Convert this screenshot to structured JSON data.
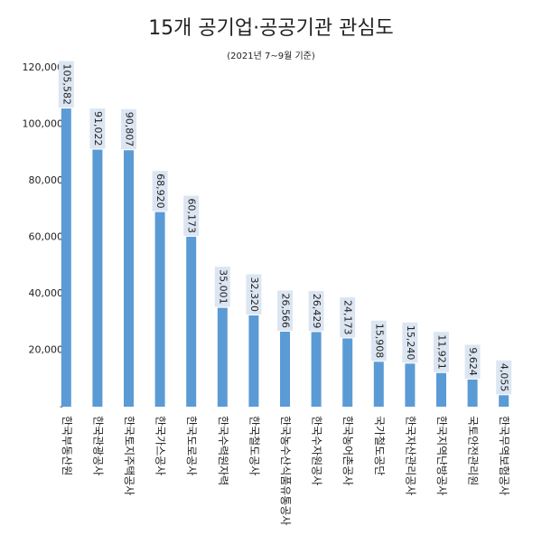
{
  "chart_data": {
    "type": "bar",
    "title": "15개 공기업·공공기관 관심도",
    "subtitle": "(2021년 7~9월 기준)",
    "categories": [
      "한국부동산원",
      "한국관광공사",
      "한국토지주택공사",
      "한국가스공사",
      "한국도로공사",
      "한국수력원자력",
      "한국철도공사",
      "한국농수산식품유통공사",
      "한국수자원공사",
      "한국농어촌공사",
      "국가철도공단",
      "한국자산관리공사",
      "한국지역난방공사",
      "국토안전관리원",
      "한국무역보험공사"
    ],
    "values": [
      105582,
      91022,
      90807,
      68920,
      60173,
      35001,
      32320,
      26566,
      26429,
      24173,
      15908,
      15240,
      11921,
      9624,
      4055
    ],
    "value_labels": [
      "105,582",
      "91,022",
      "90,807",
      "68,920",
      "60,173",
      "35,001",
      "32,320",
      "26,566",
      "26,429",
      "24,173",
      "15,908",
      "15,240",
      "11,921",
      "9,624",
      "4,055"
    ],
    "color": "#5b9bd5",
    "ylim": [
      0,
      120000
    ],
    "yticks": [
      {
        "value": 0,
        "label": "-"
      },
      {
        "value": 20000,
        "label": "20,000"
      },
      {
        "value": 40000,
        "label": "40,000"
      },
      {
        "value": 60000,
        "label": "60,000"
      },
      {
        "value": 80000,
        "label": "80,000"
      },
      {
        "value": 100000,
        "label": "100,000"
      },
      {
        "value": 120000,
        "label": "120,000"
      }
    ],
    "grid": false
  }
}
